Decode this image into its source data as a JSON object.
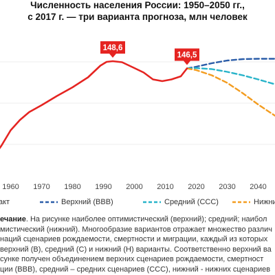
{
  "chart_data": {
    "type": "line",
    "title_line1": "Численность населения России: 1950–2050 гг.,",
    "title_line2": "с 2017 г. — три варианта прогноза, млн человек",
    "xlim": [
      1955,
      2050
    ],
    "ylim": [
      120,
      150
    ],
    "x_ticks": [
      1960,
      1970,
      1980,
      1990,
      2000,
      2010,
      2020,
      2030,
      2040
    ],
    "series": [
      {
        "name": "акт",
        "color": "#e52421",
        "style": "solid",
        "x": [
          1955,
          1957,
          1960,
          1963,
          1966,
          1970,
          1975,
          1980,
          1985,
          1989,
          1991,
          1993,
          1996,
          2000,
          2003,
          2006,
          2009,
          2012,
          2015,
          2017
        ],
        "y": [
          121.5,
          124.0,
          128.5,
          131.5,
          133.8,
          135.8,
          138.5,
          141.0,
          143.9,
          147.3,
          148.4,
          148.6,
          148.3,
          146.6,
          145.3,
          143.3,
          142.8,
          143.3,
          144.2,
          146.5
        ]
      },
      {
        "name": "Верхний (ВВВ)",
        "color": "#2a5ca8",
        "style": "dashed",
        "x": [
          2017,
          2020,
          2025,
          2030,
          2035,
          2040,
          2045,
          2050
        ],
        "y": [
          146.5,
          147.0,
          148.0,
          148.8,
          149.2,
          149.3,
          149.3,
          149.3
        ]
      },
      {
        "name": "Средний (ССС)",
        "color": "#27b3c9",
        "style": "dashed",
        "x": [
          2017,
          2020,
          2025,
          2030,
          2035,
          2040,
          2045,
          2050
        ],
        "y": [
          146.5,
          146.6,
          146.3,
          145.5,
          144.5,
          143.3,
          142.0,
          140.8
        ]
      },
      {
        "name": "Нижний",
        "color": "#f39c1f",
        "style": "dashed",
        "x": [
          2017,
          2020,
          2025,
          2030,
          2035,
          2040,
          2045,
          2050
        ],
        "y": [
          146.5,
          146.0,
          144.5,
          142.3,
          139.3,
          136.0,
          133.0,
          130.0
        ]
      }
    ],
    "annotations": [
      {
        "text": "148,6",
        "x": 1993,
        "y": 148.6
      },
      {
        "text": "146,5",
        "x": 2017,
        "y": 146.5
      }
    ]
  },
  "note": {
    "label": "ечание",
    "lines": [
      ". На рисунке наиболее оптимистический (верхний); средний; наибол",
      "мистический (нижний). Многообразие вариантов отражает множество различ",
      "наций сценариев рождаемости, смертности и миграции, каждый из которых",
      "верхний (В), средний (С) и нижний (Н) варианты. Соответственно верхний ва",
      "сунке получен объединением верхних сценариев рождаемости, смертност",
      "ции (ВВВ), средний – средних сценариев (ССС), нижний - нижних сценариев"
    ]
  }
}
